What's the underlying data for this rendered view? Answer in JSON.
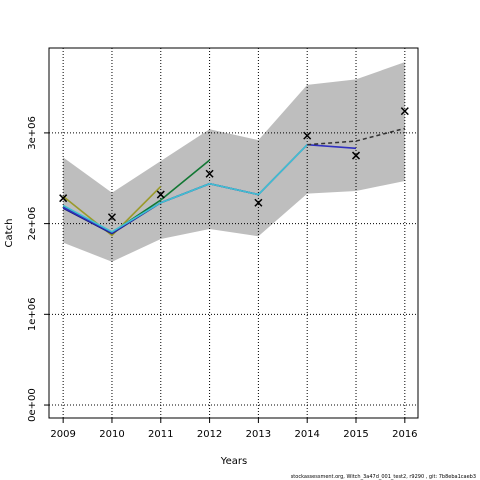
{
  "chart_data": {
    "type": "line",
    "x_label": "Years",
    "y_label": "Catch",
    "footnote": "stockassessment.org, Witch_3a47d_001_test2, r9290 , git: 7b8eba1caeb3",
    "x": [
      2009,
      2010,
      2011,
      2012,
      2013,
      2014,
      2015,
      2016
    ],
    "band": {
      "color": "#bebebe",
      "lower": [
        1790000,
        1580000,
        1830000,
        1940000,
        1860000,
        2330000,
        2360000,
        2470000
      ],
      "upper": [
        2730000,
        2340000,
        2690000,
        3040000,
        2920000,
        3530000,
        3590000,
        3780000
      ]
    },
    "series": [
      {
        "color": "#9a9a2a",
        "values": [
          2300000,
          1870000,
          2410000,
          null,
          null,
          null,
          null,
          null
        ]
      },
      {
        "color": "#117733",
        "values": [
          2190000,
          1900000,
          2260000,
          2700000,
          null,
          null,
          null,
          null
        ]
      },
      {
        "color": "#1a237e",
        "values": [
          2170000,
          1890000,
          2230000,
          2440000,
          2320000,
          null,
          null,
          null
        ]
      },
      {
        "color": "#3030c0",
        "values": [
          2180000,
          1900000,
          2230000,
          2440000,
          2320000,
          2870000,
          2830000,
          null
        ]
      },
      {
        "color": "#40c0d0",
        "values": [
          2200000,
          1910000,
          2230000,
          2440000,
          2320000,
          2870000,
          null,
          null
        ]
      },
      {
        "color": "#333333",
        "dashed": true,
        "values": [
          null,
          null,
          null,
          null,
          null,
          2870000,
          2910000,
          3050000
        ]
      }
    ],
    "observed": [
      2280000,
      2070000,
      2320000,
      2550000,
      2230000,
      2970000,
      2750000,
      3240000
    ],
    "xlim": [
      2008.71,
      2016.27
    ],
    "xticks": [
      2009,
      2010,
      2011,
      2012,
      2013,
      2014,
      2015,
      2016
    ],
    "ylim": [
      -143000,
      3936000
    ],
    "yticks": [
      {
        "value": 0,
        "label": "0e+00"
      },
      {
        "value": 1000000,
        "label": "1e+06"
      },
      {
        "value": 2000000,
        "label": "2e+06"
      },
      {
        "value": 3000000,
        "label": "3e+06"
      }
    ],
    "grid": true
  }
}
